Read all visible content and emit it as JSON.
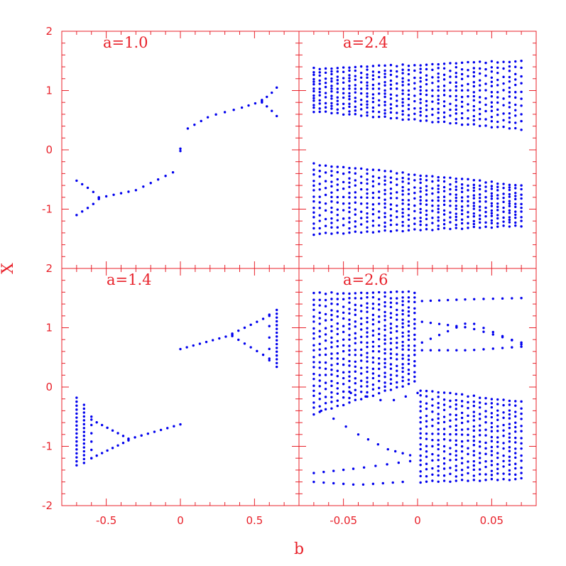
{
  "colors": {
    "axis": "#e8212a",
    "points": "#0000ee",
    "background": "#ffffff"
  },
  "chart_data": {
    "type": "scatter",
    "xlabel": "b",
    "ylabel": "X",
    "grid": false,
    "panels": [
      {
        "id": "a10",
        "label": "a=1.0",
        "xlim": [
          -0.8,
          0.8
        ],
        "ylim": [
          -2,
          2
        ],
        "xticks": [
          -0.5,
          0,
          0.5
        ],
        "xtick_labels": [
          "-0.5",
          "0",
          "0.5"
        ],
        "yticks": [
          -1,
          0,
          1,
          2
        ],
        "ytick_labels": [
          "-1",
          "0",
          "1",
          "2"
        ],
        "series": [
          {
            "kind": "interp_pts",
            "pts": [
              [
                -0.7,
                -0.52
              ],
              [
                -0.65,
                -0.6
              ],
              [
                -0.6,
                -0.68
              ],
              [
                -0.55,
                -0.8
              ]
            ],
            "n": 5
          },
          {
            "kind": "interp_pts",
            "pts": [
              [
                -0.7,
                -1.1
              ],
              [
                -0.65,
                -1.02
              ],
              [
                -0.6,
                -0.94
              ],
              [
                -0.55,
                -0.83
              ]
            ],
            "n": 5
          },
          {
            "kind": "interp_pts",
            "pts": [
              [
                -0.55,
                -0.81
              ],
              [
                -0.3,
                -0.68
              ],
              [
                -0.05,
                -0.38
              ]
            ],
            "n": 11
          },
          {
            "kind": "points",
            "pts": [
              [
                0,
                0.02
              ],
              [
                0,
                -0.02
              ]
            ]
          },
          {
            "kind": "interp_pts",
            "pts": [
              [
                0.05,
                0.36
              ],
              [
                0.2,
                0.57
              ],
              [
                0.4,
                0.7
              ],
              [
                0.55,
                0.82
              ]
            ],
            "n": 11
          },
          {
            "kind": "interp_pts",
            "pts": [
              [
                0.55,
                0.84
              ],
              [
                0.6,
                0.92
              ],
              [
                0.65,
                1.05
              ]
            ],
            "n": 4
          },
          {
            "kind": "interp_pts",
            "pts": [
              [
                0.55,
                0.8
              ],
              [
                0.6,
                0.7
              ],
              [
                0.65,
                0.57
              ]
            ],
            "n": 4
          }
        ]
      },
      {
        "id": "a24",
        "label": "a=2.4",
        "xlim": [
          -0.08,
          0.08
        ],
        "ylim": [
          -2,
          2
        ],
        "xticks": [
          -0.05,
          0,
          0.05
        ],
        "xtick_labels": [
          "-0.05",
          "0",
          "0.05"
        ],
        "yticks": [
          -1,
          0,
          1
        ],
        "ytick_labels": [
          "-1",
          "0",
          "1"
        ],
        "series": [
          {
            "kind": "bands",
            "b_start": -0.07,
            "b_end": 0.07,
            "b_step": 0.004,
            "pts_per_col": 14,
            "ranges": [
              {
                "x0": -0.07,
                "x1": 0.07,
                "lo0": 0.65,
                "hi0": 1.37,
                "lo1": 0.35,
                "hi1": 1.5
              },
              {
                "x0": -0.07,
                "x1": 0.07,
                "lo0": -1.42,
                "hi0": -0.24,
                "lo1": -1.28,
                "hi1": -0.6
              }
            ]
          }
        ]
      },
      {
        "id": "a14",
        "label": "a=1.4",
        "xlim": [
          -0.8,
          0.8
        ],
        "ylim": [
          -2,
          2
        ],
        "xticks": [
          -0.5,
          0,
          0.5
        ],
        "xtick_labels": [
          "-0.5",
          "0",
          "0.5"
        ],
        "yticks": [
          -1,
          0,
          1
        ],
        "ytick_labels": [
          "-1",
          "0",
          "1"
        ],
        "series": [
          {
            "kind": "vcol",
            "x": -0.7,
            "lo": -1.32,
            "hi": -0.18,
            "n": 18
          },
          {
            "kind": "vcol",
            "x": -0.65,
            "lo": -1.28,
            "hi": -0.3,
            "n": 16
          },
          {
            "kind": "vcol",
            "x": -0.6,
            "lo": -1.2,
            "hi": -0.5,
            "n": 6
          },
          {
            "kind": "interp_pts",
            "pts": [
              [
                -0.6,
                -0.55
              ],
              [
                -0.35,
                -0.87
              ]
            ],
            "n": 8
          },
          {
            "kind": "interp_pts",
            "pts": [
              [
                -0.6,
                -1.2
              ],
              [
                -0.35,
                -0.9
              ]
            ],
            "n": 8
          },
          {
            "kind": "interp_pts",
            "pts": [
              [
                -0.35,
                -0.88
              ],
              [
                0,
                -0.63
              ]
            ],
            "n": 9
          },
          {
            "kind": "interp_pts",
            "pts": [
              [
                0,
                0.64
              ],
              [
                0.35,
                0.88
              ]
            ],
            "n": 9
          },
          {
            "kind": "interp_pts",
            "pts": [
              [
                0.35,
                0.9
              ],
              [
                0.6,
                1.2
              ]
            ],
            "n": 7
          },
          {
            "kind": "interp_pts",
            "pts": [
              [
                0.35,
                0.86
              ],
              [
                0.6,
                0.48
              ]
            ],
            "n": 7
          },
          {
            "kind": "vcol",
            "x": 0.6,
            "lo": 0.45,
            "hi": 1.22,
            "n": 5
          },
          {
            "kind": "vcol",
            "x": 0.65,
            "lo": 0.34,
            "hi": 1.3,
            "n": 16
          }
        ]
      },
      {
        "id": "a26",
        "label": "a=2.6",
        "xlim": [
          -0.08,
          0.08
        ],
        "ylim": [
          -2,
          2
        ],
        "xticks": [
          -0.05,
          0,
          0.05
        ],
        "xtick_labels": [
          "-0.05",
          "0",
          "0.05"
        ],
        "yticks": [
          -1,
          0,
          1
        ],
        "ytick_labels": [
          "-1",
          "0",
          "1"
        ],
        "series": [
          {
            "kind": "bands",
            "b_start": -0.07,
            "b_end": 0,
            "b_step": 0.004,
            "pts_per_col": 22,
            "ranges": [
              {
                "x0": -0.07,
                "x1": 0,
                "lo0": -0.45,
                "hi0": 1.58,
                "lo1": 0.1,
                "hi1": 1.6
              }
            ]
          },
          {
            "kind": "bands",
            "b_start": 0.002,
            "b_end": 0.07,
            "b_step": 0.004,
            "pts_per_col": 18,
            "ranges": [
              {
                "x0": 0.0,
                "x1": 0.07,
                "lo0": -1.6,
                "hi0": -0.05,
                "lo1": -1.55,
                "hi1": -0.25
              }
            ]
          },
          {
            "kind": "interp_pts",
            "pts": [
              [
                -0.07,
                -1.6
              ],
              [
                -0.04,
                -1.65
              ],
              [
                -0.01,
                -1.6
              ]
            ],
            "n": 10
          },
          {
            "kind": "interp_pts",
            "pts": [
              [
                -0.07,
                -1.45
              ],
              [
                -0.04,
                -1.37
              ],
              [
                -0.005,
                -1.25
              ]
            ],
            "n": 10
          },
          {
            "kind": "interp_pts",
            "pts": [
              [
                -0.065,
                -0.4
              ],
              [
                -0.04,
                -0.8
              ],
              [
                -0.02,
                -1.05
              ],
              [
                -0.005,
                -1.15
              ]
            ],
            "n": 10
          },
          {
            "kind": "interp_pts",
            "pts": [
              [
                -0.045,
                -0.1
              ],
              [
                -0.02,
                -0.25
              ],
              [
                0,
                -0.1
              ]
            ],
            "n": 6
          },
          {
            "kind": "interp_pts",
            "pts": [
              [
                0.003,
                1.45
              ],
              [
                0.035,
                1.48
              ],
              [
                0.07,
                1.5
              ]
            ],
            "n": 12
          },
          {
            "kind": "interp_pts",
            "pts": [
              [
                0.003,
                1.1
              ],
              [
                0.035,
                1.0
              ],
              [
                0.07,
                0.75
              ]
            ],
            "n": 12
          },
          {
            "kind": "interp_pts",
            "pts": [
              [
                0.003,
                0.75
              ],
              [
                0.035,
                1.1
              ],
              [
                0.07,
                0.72
              ]
            ],
            "n": 12
          },
          {
            "kind": "interp_pts",
            "pts": [
              [
                0.003,
                0.62
              ],
              [
                0.035,
                0.62
              ],
              [
                0.07,
                0.68
              ]
            ],
            "n": 12
          }
        ]
      }
    ]
  }
}
